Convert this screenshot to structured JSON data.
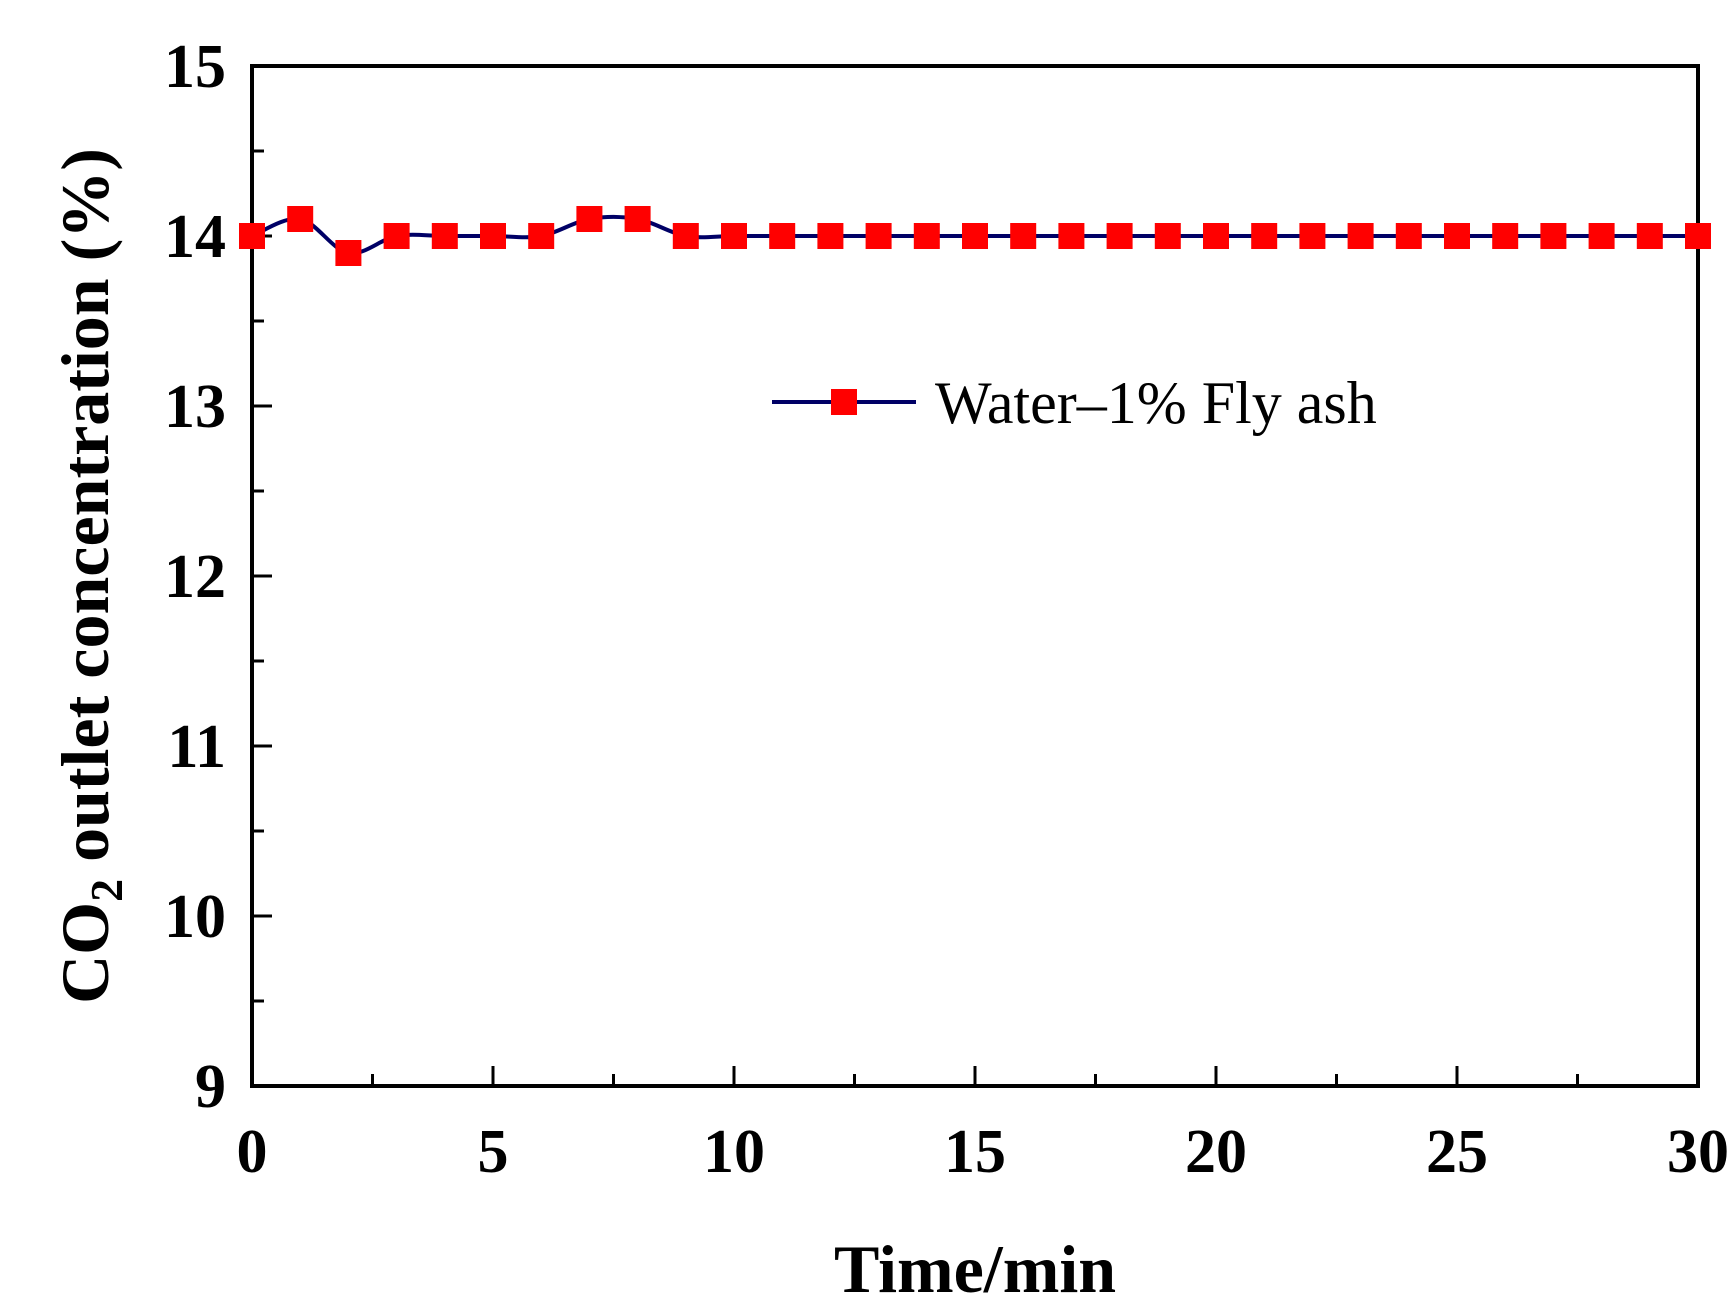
{
  "chart_data": {
    "type": "line",
    "xlabel": "Time/min",
    "ylabel": {
      "prefix": "CO",
      "subscript": "2",
      "suffix": " outlet concentration (%)"
    },
    "xlim": [
      0,
      30
    ],
    "ylim": [
      9,
      15
    ],
    "x_ticks": [
      "0",
      "5",
      "10",
      "15",
      "20",
      "25",
      "30"
    ],
    "y_ticks": [
      "9",
      "10",
      "11",
      "12",
      "13",
      "14",
      "15"
    ],
    "grid": false,
    "legend_position": "center-right",
    "series": [
      {
        "name": "Water–1% Fly ash",
        "line_color": "#000066",
        "marker_color": "#ff0000",
        "marker": "square",
        "x": [
          0,
          1,
          2,
          3,
          4,
          5,
          6,
          7,
          8,
          9,
          10,
          11,
          12,
          13,
          14,
          15,
          16,
          17,
          18,
          19,
          20,
          21,
          22,
          23,
          24,
          25,
          26,
          27,
          28,
          29,
          30
        ],
        "y": [
          14.0,
          14.1,
          13.9,
          14.0,
          14.0,
          14.0,
          14.0,
          14.1,
          14.1,
          14.0,
          14.0,
          14.0,
          14.0,
          14.0,
          14.0,
          14.0,
          14.0,
          14.0,
          14.0,
          14.0,
          14.0,
          14.0,
          14.0,
          14.0,
          14.0,
          14.0,
          14.0,
          14.0,
          14.0,
          14.0,
          14.0
        ]
      }
    ]
  }
}
